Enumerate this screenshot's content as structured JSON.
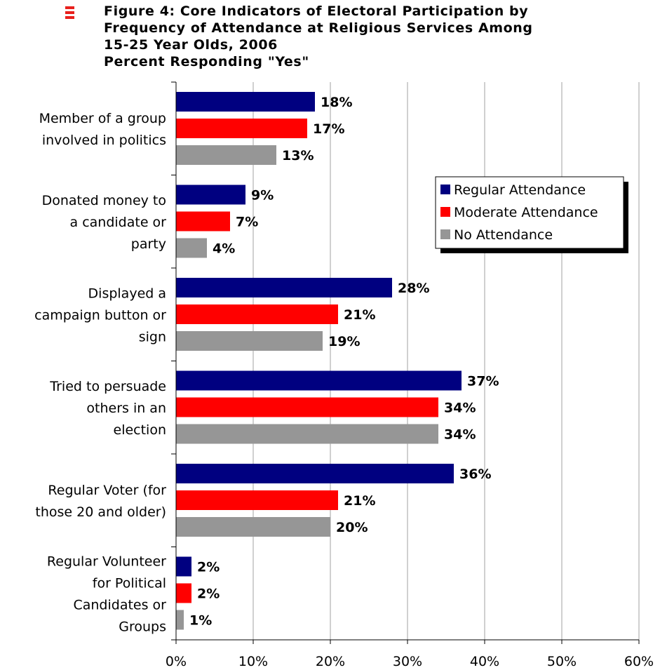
{
  "title": {
    "lines": [
      "Figure 4:  Core Indicators of Electoral Participation by",
      "Frequency of Attendance at Religious Services Among",
      "15-25 Year Olds, 2006",
      "Percent Responding \"Yes\""
    ]
  },
  "chart_data": {
    "type": "bar",
    "orientation": "horizontal",
    "categories": [
      [
        "Member of a group",
        "involved in politics"
      ],
      [
        "Donated money to",
        "a candidate or",
        "party"
      ],
      [
        "Displayed a",
        "campaign button or",
        "sign"
      ],
      [
        "Tried to persuade",
        "others in an",
        "election"
      ],
      [
        "Regular Voter (for",
        "those 20 and older)"
      ],
      [
        "Regular Volunteer",
        "for Political",
        "Candidates or",
        "Groups"
      ]
    ],
    "series": [
      {
        "name": "Regular Attendance",
        "color": "#000080",
        "values": [
          18,
          9,
          28,
          37,
          36,
          2
        ]
      },
      {
        "name": "Moderate Attendance",
        "color": "#ff0000",
        "values": [
          17,
          7,
          21,
          34,
          21,
          2
        ]
      },
      {
        "name": "No Attendance",
        "color": "#969696",
        "values": [
          13,
          4,
          19,
          34,
          20,
          1
        ]
      }
    ],
    "xlim": [
      0,
      60
    ],
    "x_ticks": [
      "0%",
      "10%",
      "20%",
      "30%",
      "40%",
      "50%",
      "60%"
    ],
    "value_suffix": "%",
    "grid": "vertical",
    "legend_position": "top-right"
  }
}
